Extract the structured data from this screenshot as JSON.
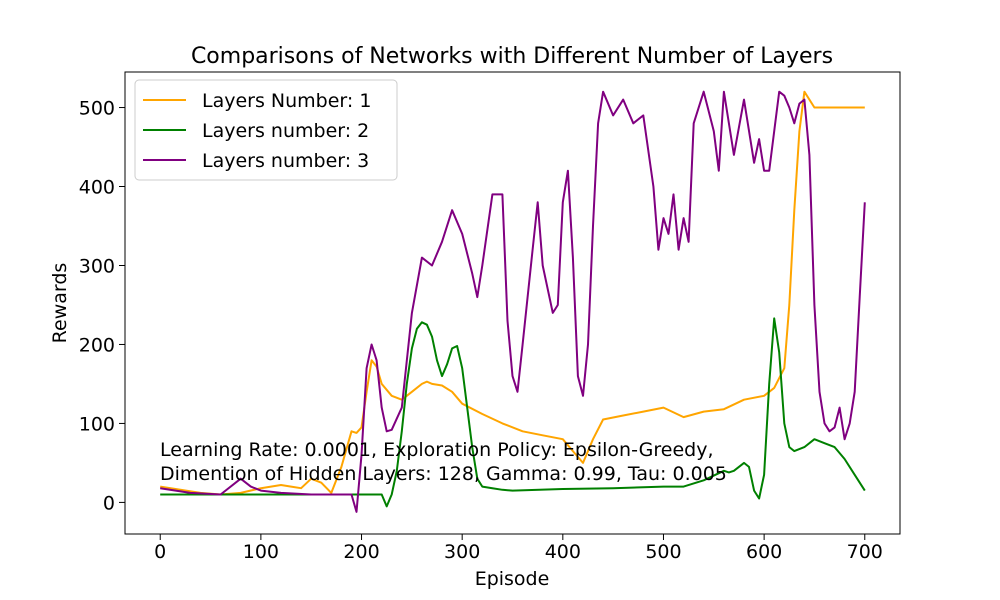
{
  "chart_data": {
    "type": "line",
    "title": "Comparisons of Networks with Different Number of Layers",
    "xlabel": "Episode",
    "ylabel": "Rewards",
    "xlim": [
      -35,
      735
    ],
    "ylim": [
      -40,
      545
    ],
    "xticks": [
      0,
      100,
      200,
      300,
      400,
      500,
      600,
      700
    ],
    "yticks": [
      0,
      100,
      200,
      300,
      400,
      500
    ],
    "grid": false,
    "legend_position": "top-left",
    "annotation_lines": [
      "Learning Rate: 0.0001, Exploration Policy: Epsilon-Greedy,",
      "Dimention of Hidden Layers: 128, Gamma: 0.99, Tau: 0.005"
    ],
    "series": [
      {
        "name": "Layers Number: 1",
        "color": "#ffa500",
        "x": [
          0,
          20,
          40,
          60,
          80,
          100,
          120,
          130,
          140,
          150,
          160,
          170,
          180,
          190,
          195,
          200,
          205,
          210,
          215,
          220,
          230,
          240,
          250,
          260,
          265,
          270,
          280,
          290,
          300,
          320,
          340,
          360,
          380,
          400,
          410,
          420,
          430,
          440,
          460,
          480,
          500,
          520,
          540,
          560,
          580,
          600,
          610,
          620,
          625,
          630,
          635,
          640,
          650,
          660,
          680,
          700
        ],
        "values": [
          20,
          16,
          12,
          10,
          12,
          18,
          22,
          20,
          18,
          30,
          25,
          12,
          45,
          90,
          88,
          95,
          140,
          180,
          172,
          150,
          135,
          130,
          140,
          150,
          153,
          150,
          148,
          140,
          125,
          112,
          100,
          90,
          85,
          80,
          65,
          50,
          80,
          105,
          110,
          115,
          120,
          108,
          115,
          118,
          130,
          135,
          145,
          170,
          250,
          370,
          470,
          520,
          500,
          500,
          500,
          500
        ]
      },
      {
        "name": "Layers number: 2",
        "color": "#008000",
        "x": [
          0,
          50,
          100,
          150,
          200,
          210,
          220,
          225,
          230,
          235,
          240,
          245,
          250,
          255,
          260,
          265,
          270,
          275,
          280,
          285,
          290,
          295,
          300,
          305,
          310,
          315,
          320,
          330,
          340,
          350,
          400,
          450,
          500,
          520,
          540,
          560,
          565,
          570,
          580,
          585,
          590,
          595,
          600,
          605,
          610,
          615,
          620,
          625,
          630,
          640,
          650,
          660,
          670,
          680,
          690,
          700
        ],
        "values": [
          10,
          10,
          10,
          10,
          10,
          10,
          10,
          -5,
          10,
          40,
          90,
          150,
          195,
          220,
          228,
          225,
          210,
          180,
          160,
          175,
          195,
          198,
          170,
          120,
          70,
          30,
          20,
          18,
          16,
          15,
          17,
          18,
          20,
          20,
          28,
          40,
          38,
          40,
          50,
          45,
          15,
          5,
          35,
          150,
          233,
          190,
          100,
          70,
          65,
          70,
          80,
          75,
          70,
          55,
          35,
          15
        ]
      },
      {
        "name": "Layers number: 3",
        "color": "#800080",
        "x": [
          0,
          30,
          60,
          80,
          90,
          100,
          120,
          150,
          180,
          190,
          195,
          200,
          205,
          210,
          215,
          220,
          225,
          230,
          240,
          250,
          260,
          270,
          280,
          290,
          300,
          310,
          315,
          320,
          330,
          340,
          345,
          350,
          355,
          360,
          370,
          375,
          380,
          390,
          395,
          400,
          405,
          410,
          415,
          420,
          425,
          430,
          435,
          440,
          450,
          460,
          470,
          480,
          490,
          495,
          500,
          505,
          510,
          515,
          520,
          525,
          530,
          540,
          550,
          555,
          560,
          570,
          580,
          590,
          595,
          600,
          605,
          610,
          615,
          620,
          625,
          630,
          635,
          640,
          645,
          650,
          655,
          660,
          665,
          670,
          675,
          680,
          685,
          690,
          695,
          700
        ],
        "values": [
          18,
          12,
          10,
          30,
          20,
          15,
          12,
          10,
          10,
          10,
          -12,
          60,
          170,
          200,
          180,
          120,
          90,
          92,
          120,
          240,
          310,
          300,
          330,
          370,
          340,
          290,
          260,
          300,
          390,
          390,
          230,
          160,
          140,
          200,
          320,
          380,
          300,
          240,
          250,
          380,
          420,
          310,
          160,
          135,
          200,
          350,
          480,
          520,
          490,
          510,
          480,
          490,
          400,
          320,
          360,
          340,
          390,
          320,
          360,
          330,
          480,
          520,
          470,
          420,
          520,
          440,
          510,
          430,
          460,
          420,
          420,
          470,
          520,
          515,
          500,
          480,
          505,
          510,
          440,
          250,
          140,
          100,
          90,
          95,
          120,
          80,
          100,
          140,
          260,
          380
        ]
      }
    ]
  }
}
